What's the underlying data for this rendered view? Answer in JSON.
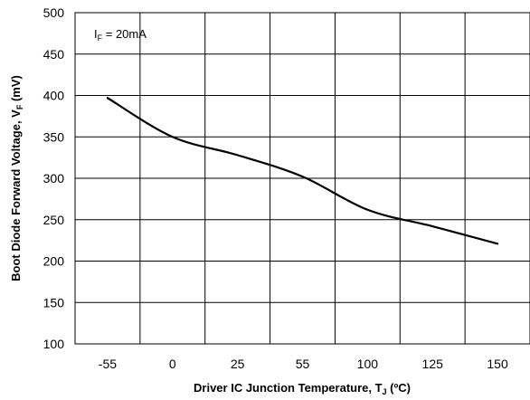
{
  "chart_data": {
    "type": "line",
    "xlabel": {
      "main": "Driver IC Junction Temperature, T",
      "sub": "J",
      "tail": " (ºC)"
    },
    "ylabel": {
      "main": "Boot Diode Forward Voltage, V",
      "sub": "F",
      "tail": " (mV)"
    },
    "annotation": {
      "main": "I",
      "sub": "F",
      "tail": " = 20mA"
    },
    "x_tick_labels": [
      "-55",
      "0",
      "25",
      "55",
      "100",
      "125",
      "150"
    ],
    "y_ticks": [
      100,
      150,
      200,
      250,
      300,
      350,
      400,
      450,
      500
    ],
    "ylim": [
      100,
      500
    ],
    "grid": true,
    "series": [
      {
        "x": [
          "-55",
          "0",
          "25",
          "55",
          "100",
          "125",
          "150"
        ],
        "values": [
          397,
          350,
          328,
          302,
          262,
          242,
          221
        ]
      }
    ]
  }
}
